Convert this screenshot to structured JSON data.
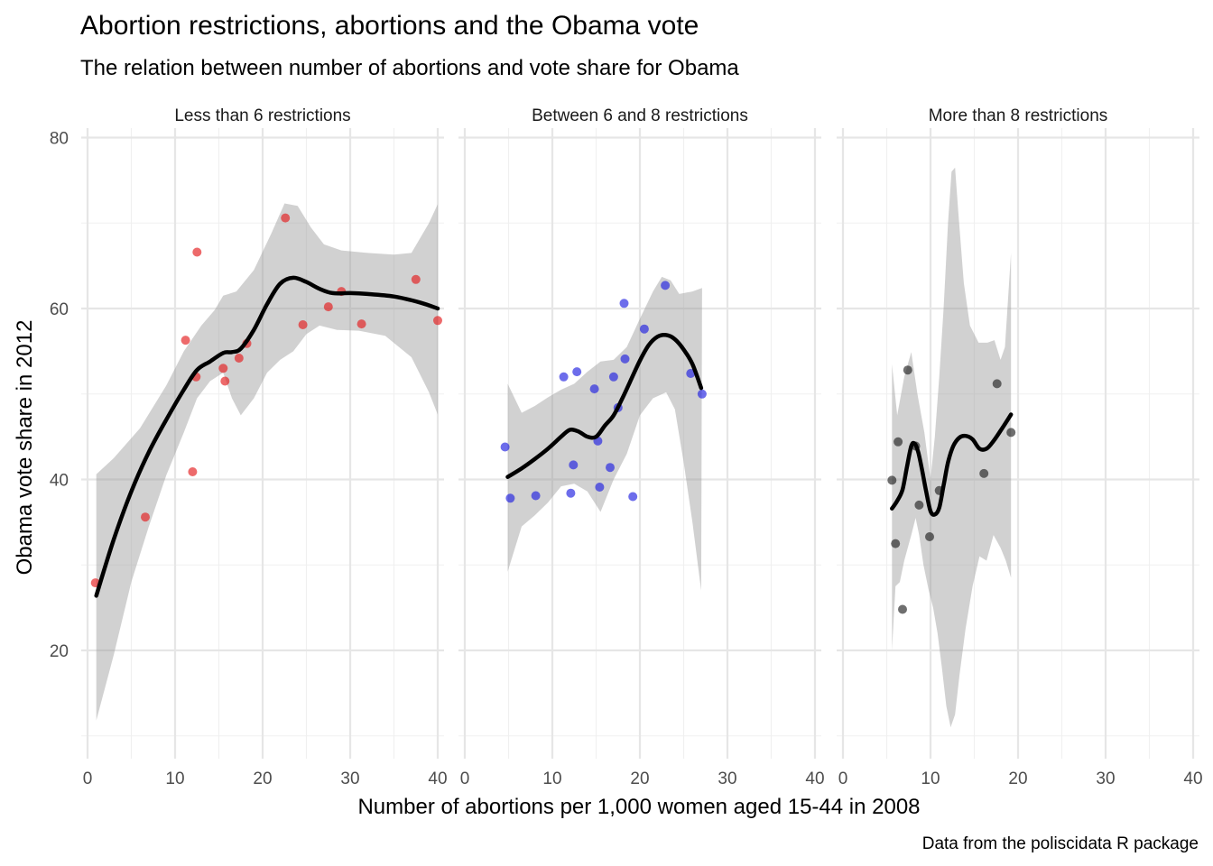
{
  "title": "Abortion restrictions, abortions and the Obama vote",
  "subtitle": "The relation between number of abortions and vote share for Obama",
  "caption": "Data from the poliscidata R package",
  "chart_data": {
    "type": "scatter",
    "xlabel": "Number of abortions per 1,000 women aged 15-44 in 2008",
    "ylabel": "Obama vote share in 2012",
    "xlim": [
      0,
      40
    ],
    "ylim": [
      10,
      80
    ],
    "x_ticks": [
      0,
      10,
      20,
      30,
      40
    ],
    "y_ticks": [
      20,
      40,
      60,
      80
    ],
    "grid": true,
    "panels": [
      {
        "label": "Less than 6 restrictions",
        "color": "#e41a1c",
        "points": [
          [
            0.9,
            27.9
          ],
          [
            6.6,
            35.6
          ],
          [
            11.2,
            56.3
          ],
          [
            12.0,
            40.9
          ],
          [
            12.4,
            52.0
          ],
          [
            12.5,
            66.6
          ],
          [
            15.5,
            53.0
          ],
          [
            15.7,
            51.5
          ],
          [
            17.3,
            54.2
          ],
          [
            18.2,
            55.9
          ],
          [
            22.6,
            70.6
          ],
          [
            24.6,
            58.1
          ],
          [
            27.5,
            60.2
          ],
          [
            29.0,
            62.0
          ],
          [
            31.3,
            58.2
          ],
          [
            37.5,
            63.4
          ],
          [
            40.0,
            58.6
          ]
        ],
        "smooth": [
          [
            1.0,
            26.4
          ],
          [
            3.0,
            33.0
          ],
          [
            5.0,
            38.6
          ],
          [
            7.0,
            43.2
          ],
          [
            9.0,
            47.0
          ],
          [
            11.0,
            50.5
          ],
          [
            12.5,
            52.8
          ],
          [
            14.0,
            53.8
          ],
          [
            15.5,
            54.8
          ],
          [
            16.5,
            54.9
          ],
          [
            17.5,
            55.3
          ],
          [
            19.0,
            57.5
          ],
          [
            20.5,
            60.5
          ],
          [
            22.0,
            62.9
          ],
          [
            23.5,
            63.6
          ],
          [
            25.0,
            63.1
          ],
          [
            26.5,
            62.3
          ],
          [
            28.0,
            61.8
          ],
          [
            30.0,
            61.8
          ],
          [
            32.0,
            61.7
          ],
          [
            35.0,
            61.4
          ],
          [
            38.0,
            60.7
          ],
          [
            40.0,
            60.0
          ]
        ],
        "band_upper": [
          [
            1.0,
            40.6
          ],
          [
            3.0,
            42.5
          ],
          [
            6.0,
            46.0
          ],
          [
            9.0,
            51.0
          ],
          [
            11.0,
            55.0
          ],
          [
            13.0,
            58.0
          ],
          [
            14.5,
            59.8
          ],
          [
            15.5,
            61.5
          ],
          [
            17.0,
            62.0
          ],
          [
            19.0,
            64.5
          ],
          [
            21.0,
            68.8
          ],
          [
            22.5,
            72.3
          ],
          [
            24.0,
            72.0
          ],
          [
            25.5,
            69.5
          ],
          [
            27.0,
            67.5
          ],
          [
            29.0,
            66.8
          ],
          [
            32.0,
            66.5
          ],
          [
            35.0,
            66.3
          ],
          [
            37.0,
            66.5
          ],
          [
            39.0,
            70.0
          ],
          [
            40.0,
            72.2
          ]
        ],
        "band_lower": [
          [
            1.0,
            11.8
          ],
          [
            3.0,
            19.5
          ],
          [
            5.0,
            28.0
          ],
          [
            7.0,
            34.5
          ],
          [
            9.0,
            40.5
          ],
          [
            11.0,
            45.5
          ],
          [
            12.5,
            49.5
          ],
          [
            14.0,
            51.5
          ],
          [
            15.5,
            52.5
          ],
          [
            16.5,
            49.5
          ],
          [
            17.5,
            47.5
          ],
          [
            19.0,
            49.5
          ],
          [
            20.5,
            52.5
          ],
          [
            22.0,
            54.0
          ],
          [
            23.5,
            55.0
          ],
          [
            25.0,
            57.0
          ],
          [
            26.5,
            58.0
          ],
          [
            28.5,
            57.5
          ],
          [
            31.0,
            57.4
          ],
          [
            34.0,
            56.8
          ],
          [
            37.0,
            54.3
          ],
          [
            39.0,
            50.2
          ],
          [
            40.0,
            47.6
          ]
        ]
      },
      {
        "label": "Between 6 and 8 restrictions",
        "color": "#1f1fe0",
        "points": [
          [
            4.6,
            43.8
          ],
          [
            5.2,
            37.8
          ],
          [
            8.1,
            38.1
          ],
          [
            11.3,
            52.0
          ],
          [
            12.1,
            38.4
          ],
          [
            12.4,
            41.7
          ],
          [
            12.8,
            52.6
          ],
          [
            14.8,
            50.6
          ],
          [
            15.2,
            44.5
          ],
          [
            15.4,
            39.1
          ],
          [
            16.6,
            41.4
          ],
          [
            17.0,
            52.0
          ],
          [
            17.5,
            48.4
          ],
          [
            18.2,
            60.6
          ],
          [
            18.3,
            54.1
          ],
          [
            19.2,
            38.0
          ],
          [
            20.5,
            57.6
          ],
          [
            22.9,
            62.7
          ],
          [
            25.8,
            52.4
          ],
          [
            27.1,
            50.0
          ]
        ],
        "smooth": [
          [
            4.9,
            40.3
          ],
          [
            6.5,
            41.3
          ],
          [
            8.0,
            42.4
          ],
          [
            9.5,
            43.6
          ],
          [
            11.0,
            45.0
          ],
          [
            12.0,
            45.8
          ],
          [
            13.0,
            45.6
          ],
          [
            14.0,
            45.0
          ],
          [
            15.0,
            45.0
          ],
          [
            16.0,
            46.3
          ],
          [
            17.0,
            47.5
          ],
          [
            18.0,
            49.5
          ],
          [
            19.0,
            51.7
          ],
          [
            20.0,
            53.9
          ],
          [
            21.0,
            55.7
          ],
          [
            22.0,
            56.7
          ],
          [
            23.0,
            56.9
          ],
          [
            24.0,
            56.4
          ],
          [
            25.0,
            55.2
          ],
          [
            26.0,
            53.5
          ],
          [
            27.0,
            50.7
          ]
        ],
        "band_upper": [
          [
            4.9,
            51.2
          ],
          [
            6.5,
            47.8
          ],
          [
            8.0,
            48.6
          ],
          [
            9.5,
            49.6
          ],
          [
            11.0,
            50.5
          ],
          [
            12.5,
            51.2
          ],
          [
            14.0,
            52.6
          ],
          [
            15.5,
            53.8
          ],
          [
            17.0,
            54.0
          ],
          [
            18.5,
            55.5
          ],
          [
            20.0,
            58.8
          ],
          [
            21.5,
            62.0
          ],
          [
            22.5,
            63.7
          ],
          [
            23.5,
            63.3
          ],
          [
            24.5,
            61.7
          ],
          [
            26.0,
            62.0
          ],
          [
            27.1,
            62.4
          ]
        ],
        "band_lower": [
          [
            4.9,
            29.2
          ],
          [
            6.5,
            34.5
          ],
          [
            8.0,
            35.8
          ],
          [
            9.5,
            37.3
          ],
          [
            11.0,
            39.2
          ],
          [
            12.5,
            39.5
          ],
          [
            14.0,
            38.6
          ],
          [
            15.5,
            36.2
          ],
          [
            17.0,
            40.0
          ],
          [
            18.5,
            43.0
          ],
          [
            20.0,
            47.5
          ],
          [
            21.5,
            49.5
          ],
          [
            23.0,
            50.2
          ],
          [
            24.0,
            48.2
          ],
          [
            25.0,
            42.0
          ],
          [
            26.0,
            35.0
          ],
          [
            27.0,
            27.0
          ]
        ]
      },
      {
        "label": "More than 8 restrictions",
        "color": "#222222",
        "points": [
          [
            5.6,
            39.9
          ],
          [
            6.0,
            32.5
          ],
          [
            6.3,
            44.4
          ],
          [
            6.8,
            24.8
          ],
          [
            7.4,
            52.8
          ],
          [
            8.3,
            43.9
          ],
          [
            8.7,
            37.0
          ],
          [
            9.9,
            33.3
          ],
          [
            11.0,
            38.7
          ],
          [
            16.1,
            40.7
          ],
          [
            17.6,
            51.2
          ],
          [
            19.2,
            45.5
          ]
        ],
        "smooth": [
          [
            5.6,
            36.6
          ],
          [
            6.2,
            37.5
          ],
          [
            6.8,
            38.8
          ],
          [
            7.3,
            41.4
          ],
          [
            7.8,
            43.9
          ],
          [
            8.2,
            44.2
          ],
          [
            8.6,
            43.2
          ],
          [
            9.0,
            41.3
          ],
          [
            9.5,
            38.6
          ],
          [
            10.0,
            36.3
          ],
          [
            10.5,
            35.9
          ],
          [
            11.0,
            36.7
          ],
          [
            11.5,
            39.3
          ],
          [
            12.0,
            42.0
          ],
          [
            12.6,
            43.9
          ],
          [
            13.3,
            44.9
          ],
          [
            14.0,
            45.1
          ],
          [
            14.8,
            44.7
          ],
          [
            15.6,
            43.6
          ],
          [
            16.4,
            43.6
          ],
          [
            17.2,
            44.5
          ],
          [
            18.2,
            46.0
          ],
          [
            19.2,
            47.6
          ]
        ],
        "band_upper": [
          [
            5.6,
            53.5
          ],
          [
            6.2,
            47.5
          ],
          [
            7.0,
            52.0
          ],
          [
            7.8,
            54.9
          ],
          [
            8.5,
            50.0
          ],
          [
            9.3,
            45.5
          ],
          [
            10.0,
            40.0
          ],
          [
            10.5,
            45.0
          ],
          [
            11.0,
            52.0
          ],
          [
            11.5,
            60.0
          ],
          [
            12.0,
            70.0
          ],
          [
            12.4,
            76.0
          ],
          [
            12.8,
            76.5
          ],
          [
            13.2,
            71.0
          ],
          [
            13.8,
            63.0
          ],
          [
            14.5,
            58.0
          ],
          [
            15.5,
            56.0
          ],
          [
            16.5,
            56.0
          ],
          [
            17.3,
            56.3
          ],
          [
            18.0,
            54.0
          ],
          [
            18.5,
            55.5
          ],
          [
            19.2,
            66.5
          ]
        ],
        "band_lower": [
          [
            5.6,
            20.0
          ],
          [
            6.0,
            27.5
          ],
          [
            6.5,
            28.0
          ],
          [
            7.0,
            30.5
          ],
          [
            7.8,
            33.5
          ],
          [
            8.3,
            35.5
          ],
          [
            8.7,
            33.5
          ],
          [
            9.2,
            30.0
          ],
          [
            9.8,
            27.0
          ],
          [
            10.3,
            25.0
          ],
          [
            10.8,
            22.0
          ],
          [
            11.3,
            18.0
          ],
          [
            11.8,
            13.5
          ],
          [
            12.3,
            11.0
          ],
          [
            12.8,
            12.5
          ],
          [
            13.3,
            17.0
          ],
          [
            14.0,
            22.5
          ],
          [
            14.8,
            27.5
          ],
          [
            15.6,
            31.0
          ],
          [
            16.4,
            30.5
          ],
          [
            17.2,
            33.5
          ],
          [
            18.0,
            32.0
          ],
          [
            18.6,
            30.5
          ],
          [
            19.2,
            28.5
          ]
        ]
      }
    ]
  }
}
